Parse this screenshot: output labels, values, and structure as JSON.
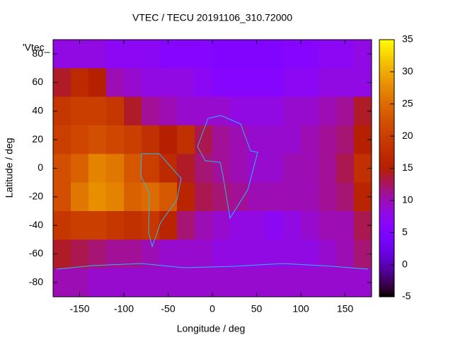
{
  "chart_data": {
    "type": "heatmap",
    "title": "VTEC / TECU 20191106_310.72000",
    "x_label": "Longitude / deg",
    "y_label": "Latitude / deg",
    "legend": "'Vtec_",
    "x": [
      -170,
      -150,
      -130,
      -110,
      -90,
      -70,
      -50,
      -30,
      -10,
      10,
      30,
      50,
      70,
      90,
      110,
      130,
      150,
      170
    ],
    "y": [
      80,
      60,
      40,
      20,
      0,
      -20,
      -40,
      -60,
      -80
    ],
    "values": [
      [
        8,
        8,
        8,
        7,
        7,
        7,
        6,
        6,
        6,
        5,
        5,
        5,
        5,
        6,
        6,
        7,
        7,
        8
      ],
      [
        14,
        17,
        15,
        10,
        9,
        8,
        8,
        8,
        7,
        6,
        6,
        6,
        6,
        7,
        7,
        8,
        8,
        8
      ],
      [
        19,
        20,
        20,
        19,
        14,
        11,
        10,
        9,
        9,
        9,
        8,
        8,
        8,
        9,
        9,
        10,
        11,
        14
      ],
      [
        20,
        21,
        22,
        21,
        20,
        18,
        15,
        18,
        13,
        11,
        10,
        9,
        9,
        9,
        10,
        11,
        12,
        15
      ],
      [
        22,
        24,
        27,
        26,
        23,
        20,
        17,
        14,
        12,
        11,
        10,
        9,
        9,
        10,
        10,
        11,
        13,
        18
      ],
      [
        22,
        26,
        28,
        27,
        24,
        25,
        23,
        16,
        13,
        12,
        11,
        10,
        10,
        10,
        10,
        11,
        12,
        16
      ],
      [
        19,
        20,
        20,
        19,
        18,
        19,
        16,
        12,
        10,
        9,
        8,
        8,
        7,
        8,
        9,
        10,
        10,
        13
      ],
      [
        14,
        13,
        12,
        11,
        11,
        10,
        9,
        9,
        9,
        8,
        8,
        8,
        8,
        8,
        8,
        9,
        10,
        12
      ],
      [
        10,
        10,
        9,
        9,
        9,
        9,
        9,
        9,
        9,
        9,
        9,
        9,
        9,
        9,
        9,
        9,
        9,
        9
      ]
    ],
    "xlim": [
      -180,
      180
    ],
    "ylim": [
      -90,
      90
    ],
    "xticks": [
      -150,
      -100,
      -50,
      0,
      50,
      100,
      150
    ],
    "yticks": [
      -80,
      -60,
      -40,
      -20,
      0,
      20,
      40,
      60,
      80
    ],
    "cblim": [
      -5,
      35
    ],
    "cbticks": [
      -5,
      0,
      5,
      10,
      15,
      20,
      25,
      30,
      35
    ]
  }
}
